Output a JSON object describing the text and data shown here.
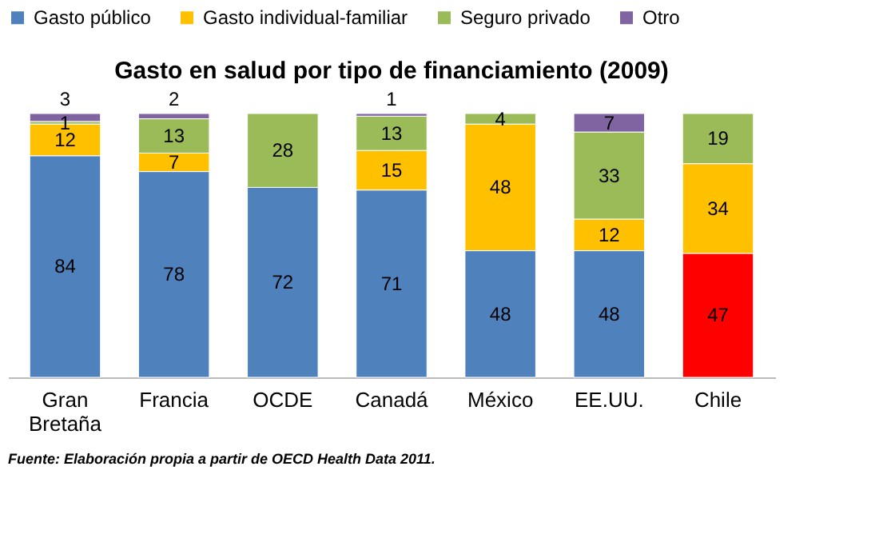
{
  "chart_data": {
    "type": "bar",
    "title": "Gasto en salud por tipo de financiamiento (2009)",
    "categories": [
      "Gran Bretaña",
      "Francia",
      "OCDE",
      "Canadá",
      "México",
      "EE.UU.",
      "Chile"
    ],
    "stacked": true,
    "data_labels": true,
    "legend": "top",
    "tick_labels": "x",
    "grid": false,
    "series": [
      {
        "name": "Gasto público",
        "color": "#4f81bd",
        "colors": [
          "#4f81bd",
          "#4f81bd",
          "#4f81bd",
          "#4f81bd",
          "#4f81bd",
          "#4f81bd",
          "#ff0000"
        ],
        "values": [
          84,
          78,
          72,
          71,
          48,
          48,
          47
        ]
      },
      {
        "name": "Gasto individual-familiar",
        "color": "#ffc000",
        "values": [
          12,
          7,
          null,
          15,
          48,
          12,
          34
        ]
      },
      {
        "name": "Seguro privado",
        "color": "#9bbb59",
        "values": [
          1,
          13,
          28,
          13,
          4,
          33,
          19
        ]
      },
      {
        "name": "Otro",
        "color": "#8064a2",
        "values": [
          3,
          2,
          null,
          1,
          null,
          7,
          null
        ]
      }
    ],
    "annotations": [
      "Fuente: Elaboración propia a partir de OECD Health Data 2011."
    ]
  }
}
